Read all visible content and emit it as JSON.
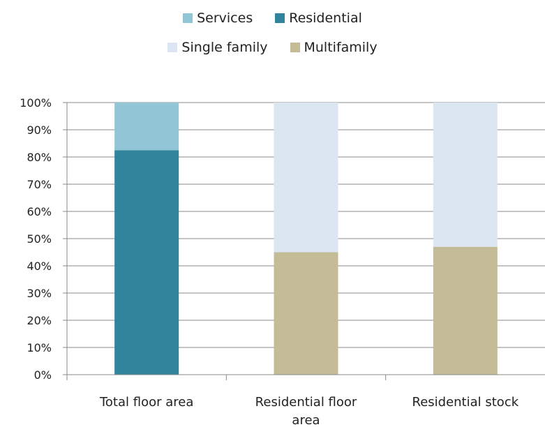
{
  "chart_data": {
    "type": "bar",
    "stacked": true,
    "percent": true,
    "categories": [
      [
        "Total floor area"
      ],
      [
        "Residential floor",
        "area"
      ],
      [
        "Residential stock"
      ]
    ],
    "series": [
      {
        "name": "Residential",
        "color": "#31849B",
        "values": [
          82.5,
          null,
          null
        ]
      },
      {
        "name": "Services",
        "color": "#92C5D5",
        "values": [
          17.5,
          null,
          null
        ]
      },
      {
        "name": "Multifamily",
        "color": "#C4BC96",
        "values": [
          null,
          45,
          47
        ]
      },
      {
        "name": "Single family",
        "color": "#DCE6F2",
        "values": [
          null,
          55,
          53
        ]
      }
    ],
    "legend": {
      "position": "top",
      "rows": [
        [
          "Services",
          "Residential"
        ],
        [
          "Single family",
          "Multifamily"
        ]
      ]
    },
    "ylim": [
      0,
      100
    ],
    "yticks": [
      "0%",
      "10%",
      "20%",
      "30%",
      "40%",
      "50%",
      "60%",
      "70%",
      "80%",
      "90%",
      "100%"
    ],
    "grid": true
  }
}
